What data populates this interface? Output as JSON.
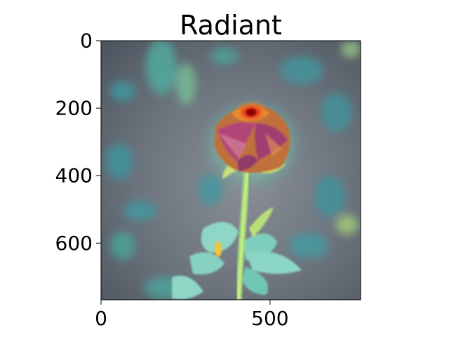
{
  "chart_data": {
    "type": "heatmap",
    "title": "Radiant",
    "xlabel": "",
    "ylabel": "",
    "xlim": [
      0,
      768
    ],
    "ylim": [
      768,
      0
    ],
    "x_ticks": [
      0,
      500
    ],
    "y_ticks": [
      0,
      200,
      400,
      600
    ],
    "x_tick_labels": [
      "0",
      "500"
    ],
    "y_tick_labels": [
      "0",
      "200",
      "400",
      "600"
    ],
    "grid": false,
    "image": {
      "width": 768,
      "height": 768,
      "subject": "rose-on-stem",
      "overlay_colormap": "jet"
    },
    "colors": {
      "background": "#5f6a73",
      "teal_patch": "#3fa8a0",
      "yellow_green_patch": "#9fcf6a",
      "leaf": "#8fd4c6",
      "stem": "#a8e07a",
      "petal_magenta": "#b0447a",
      "petal_orange": "#e08a3c",
      "hot_spot": "#e01010"
    }
  }
}
